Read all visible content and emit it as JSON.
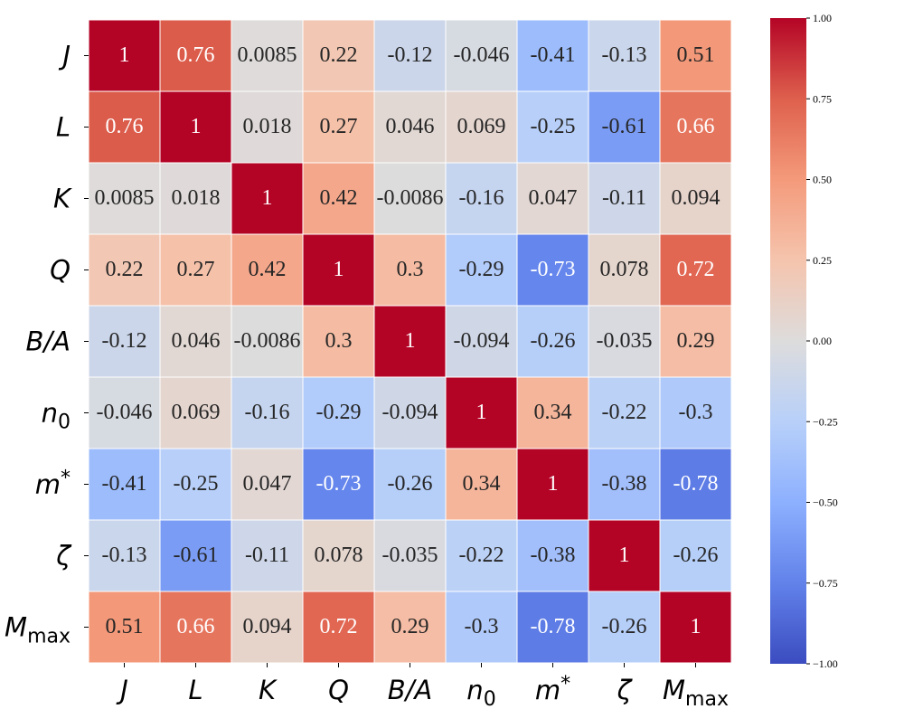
{
  "chart_data": {
    "type": "heatmap",
    "title": "",
    "xlabel": "",
    "ylabel": "",
    "labels": [
      {
        "base": "J",
        "sub": "",
        "sup": ""
      },
      {
        "base": "L",
        "sub": "",
        "sup": ""
      },
      {
        "base": "K",
        "sub": "",
        "sup": ""
      },
      {
        "base": "Q",
        "sub": "",
        "sup": ""
      },
      {
        "base": "B/A",
        "sub": "",
        "sup": ""
      },
      {
        "base": "n",
        "sub": "0",
        "sup": ""
      },
      {
        "base": "m",
        "sub": "",
        "sup": "*"
      },
      {
        "base": "ζ",
        "sub": "",
        "sup": ""
      },
      {
        "base": "M",
        "sub": "max",
        "sup": ""
      }
    ],
    "matrix": [
      [
        "1",
        "0.76",
        "0.0085",
        "0.22",
        "-0.12",
        "-0.046",
        "-0.41",
        "-0.13",
        "0.51"
      ],
      [
        "0.76",
        "1",
        "0.018",
        "0.27",
        "0.046",
        "0.069",
        "-0.25",
        "-0.61",
        "0.66"
      ],
      [
        "0.0085",
        "0.018",
        "1",
        "0.42",
        "-0.0086",
        "-0.16",
        "0.047",
        "-0.11",
        "0.094"
      ],
      [
        "0.22",
        "0.27",
        "0.42",
        "1",
        "0.3",
        "-0.29",
        "-0.73",
        "0.078",
        "0.72"
      ],
      [
        "-0.12",
        "0.046",
        "-0.0086",
        "0.3",
        "1",
        "-0.094",
        "-0.26",
        "-0.035",
        "0.29"
      ],
      [
        "-0.046",
        "0.069",
        "-0.16",
        "-0.29",
        "-0.094",
        "1",
        "0.34",
        "-0.22",
        "-0.3"
      ],
      [
        "-0.41",
        "-0.25",
        "0.047",
        "-0.73",
        "-0.26",
        "0.34",
        "1",
        "-0.38",
        "-0.78"
      ],
      [
        "-0.13",
        "-0.61",
        "-0.11",
        "0.078",
        "-0.035",
        "-0.22",
        "-0.38",
        "1",
        "-0.26"
      ],
      [
        "0.51",
        "0.66",
        "0.094",
        "0.72",
        "0.29",
        "-0.3",
        "-0.78",
        "-0.26",
        "1"
      ]
    ],
    "colorbar": {
      "range": [
        -1.0,
        1.0
      ],
      "ticks": [
        "1.00",
        "0.75",
        "0.50",
        "0.25",
        "0.00",
        "−0.25",
        "−0.50",
        "−0.75",
        "−1.00"
      ],
      "tick_values": [
        1.0,
        0.75,
        0.5,
        0.25,
        0.0,
        -0.25,
        -0.5,
        -0.75,
        -1.0
      ]
    },
    "colormap": "coolwarm",
    "colormap_stops": [
      "#3b4cc0",
      "#6282ea",
      "#8db0fe",
      "#b8d0f9",
      "#dddcdc",
      "#f5c4ad",
      "#f49a7b",
      "#de604d",
      "#b40426"
    ]
  }
}
